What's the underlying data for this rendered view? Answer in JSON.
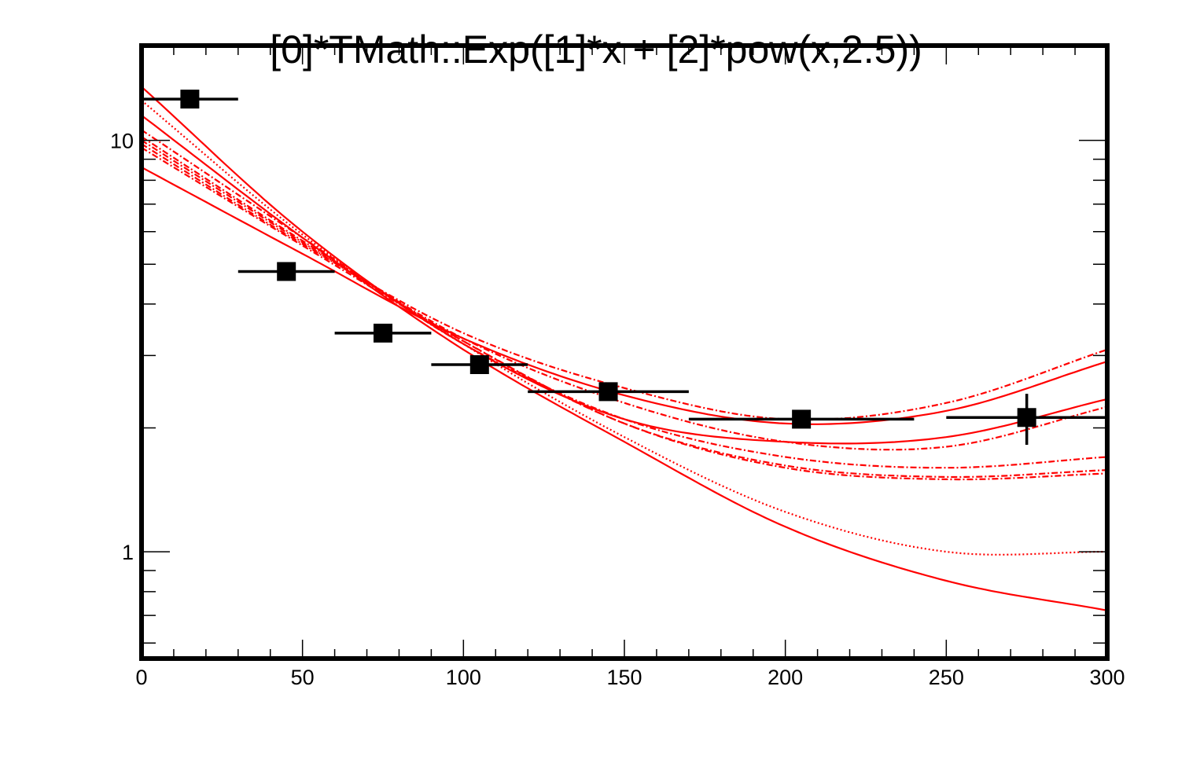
{
  "chart_data": {
    "type": "scatter",
    "title": "[0]*TMath::Exp([1]*x + [2]*pow(x,2.5))",
    "xlabel": "",
    "ylabel": "",
    "xlim": [
      0,
      300
    ],
    "ylim": [
      0.55,
      17
    ],
    "yscale": "log",
    "grid": false,
    "x_ticks": [
      0,
      50,
      100,
      150,
      200,
      250,
      300
    ],
    "y_ticks": [
      1,
      10
    ],
    "colors": {
      "points": "#000000",
      "curves": "#ff0000"
    },
    "points": {
      "x": [
        15,
        45,
        75,
        105,
        145,
        205,
        275
      ],
      "y": [
        12.6,
        4.8,
        3.4,
        2.85,
        2.45,
        2.1,
        2.12
      ],
      "xerr": [
        15,
        15,
        15,
        15,
        25,
        35,
        25
      ],
      "yerr": [
        0.1,
        0.1,
        0.1,
        0.1,
        0.1,
        0.1,
        0.3
      ]
    },
    "fits": [
      {
        "style": "solid",
        "x": [
          0,
          50,
          100,
          150,
          200,
          250,
          300
        ],
        "y": [
          13.5,
          6.0,
          3.2,
          2.1,
          1.85,
          1.9,
          2.35
        ]
      },
      {
        "style": "solid",
        "x": [
          0,
          50,
          100,
          150,
          200,
          250,
          300
        ],
        "y": [
          8.6,
          5.3,
          3.3,
          2.4,
          2.05,
          2.2,
          2.9
        ]
      },
      {
        "style": "solid",
        "x": [
          0,
          50,
          100,
          150,
          200,
          250,
          300
        ],
        "y": [
          11.5,
          5.8,
          3.1,
          1.85,
          1.15,
          0.85,
          0.72
        ]
      },
      {
        "style": "dotted",
        "x": [
          0,
          50,
          100,
          150,
          200,
          250,
          300
        ],
        "y": [
          12.5,
          5.9,
          3.2,
          1.9,
          1.25,
          1.0,
          1.0
        ]
      },
      {
        "style": "dashdot",
        "x": [
          0,
          50,
          100,
          150,
          200,
          250,
          300
        ],
        "y": [
          9.8,
          5.6,
          3.4,
          2.5,
          2.1,
          2.3,
          3.1
        ]
      },
      {
        "style": "dashdot",
        "x": [
          0,
          50,
          100,
          150,
          200,
          250,
          300
        ],
        "y": [
          10.2,
          5.7,
          3.3,
          2.3,
          1.85,
          1.8,
          2.25
        ]
      },
      {
        "style": "dashdot",
        "x": [
          0,
          50,
          100,
          150,
          200,
          250,
          300
        ],
        "y": [
          10.6,
          5.8,
          3.2,
          2.1,
          1.7,
          1.6,
          1.7
        ]
      },
      {
        "style": "dashdot",
        "x": [
          0,
          50,
          100,
          150,
          200,
          250,
          300
        ],
        "y": [
          10.0,
          5.65,
          3.25,
          2.05,
          1.62,
          1.52,
          1.58
        ]
      },
      {
        "style": "dashdot",
        "x": [
          0,
          50,
          100,
          150,
          200,
          250,
          300
        ],
        "y": [
          9.6,
          5.55,
          3.25,
          2.05,
          1.6,
          1.5,
          1.55
        ]
      }
    ]
  }
}
